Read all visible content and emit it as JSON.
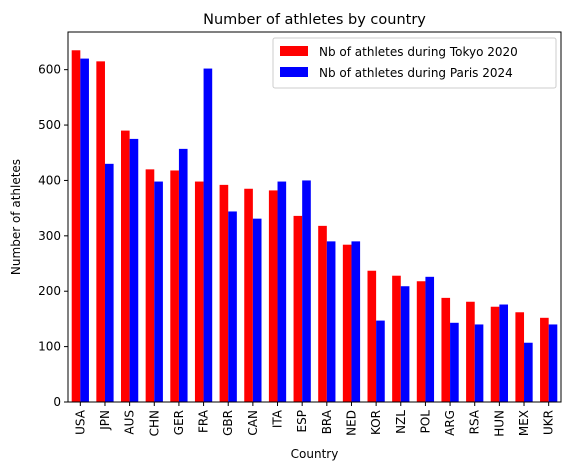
{
  "chart_data": {
    "type": "bar",
    "title": "Number of athletes by country",
    "xlabel": "Country",
    "ylabel": "Number of athletes",
    "ylim": [
      0,
      668
    ],
    "yticks": [
      0,
      100,
      200,
      300,
      400,
      500,
      600
    ],
    "grid": false,
    "legend_position": "top-right",
    "categories": [
      "USA",
      "JPN",
      "AUS",
      "CHN",
      "GER",
      "FRA",
      "GBR",
      "CAN",
      "ITA",
      "ESP",
      "BRA",
      "NED",
      "KOR",
      "NZL",
      "POL",
      "ARG",
      "RSA",
      "HUN",
      "MEX",
      "UKR"
    ],
    "series": [
      {
        "name": "Nb of athletes during Tokyo 2020",
        "color": "#ff0000",
        "values": [
          635,
          615,
          490,
          420,
          418,
          398,
          392,
          385,
          382,
          336,
          318,
          284,
          237,
          228,
          218,
          188,
          181,
          172,
          162,
          152
        ]
      },
      {
        "name": "Nb of athletes during Paris 2024",
        "color": "#0000ff",
        "values": [
          620,
          430,
          475,
          398,
          457,
          602,
          344,
          331,
          398,
          400,
          290,
          290,
          147,
          209,
          226,
          143,
          140,
          176,
          107,
          140
        ]
      }
    ]
  }
}
